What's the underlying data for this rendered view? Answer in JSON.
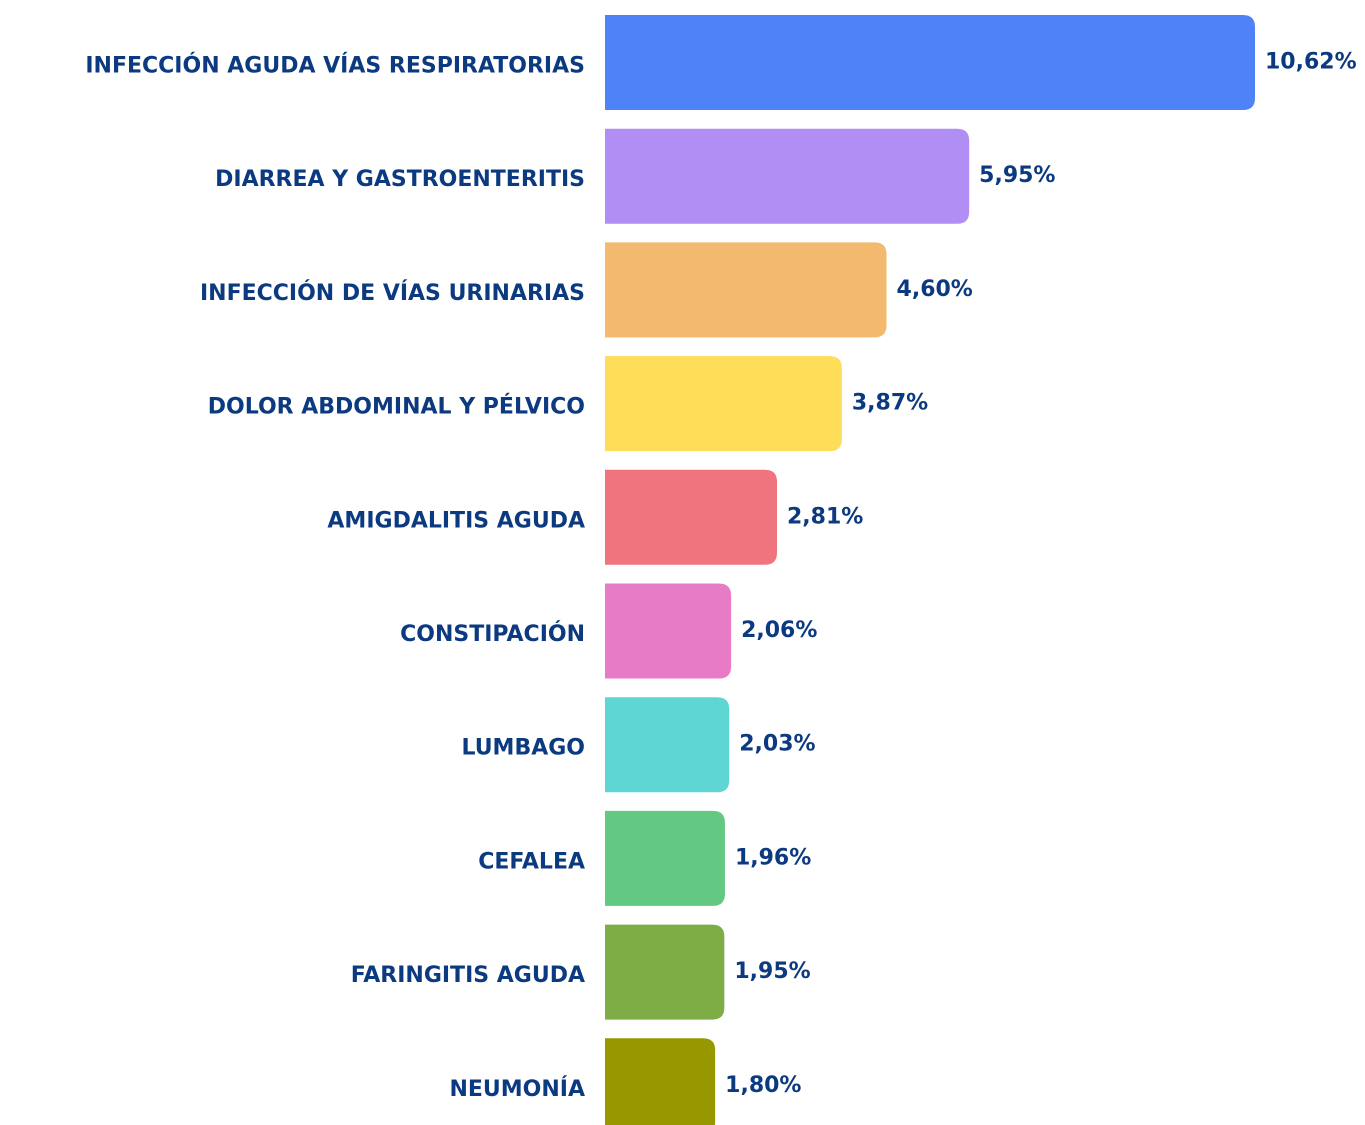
{
  "chart_data": {
    "type": "bar",
    "orientation": "horizontal",
    "categories": [
      "INFECCIÓN AGUDA VÍAS RESPIRATORIAS",
      "DIARREA Y GASTROENTERITIS",
      "INFECCIÓN DE VÍAS URINARIAS",
      "DOLOR ABDOMINAL Y PÉLVICO",
      "AMIGDALITIS AGUDA",
      "CONSTIPACIÓN",
      "LUMBAGO",
      "CEFALEA",
      "FARINGITIS AGUDA",
      "NEUMONÍA"
    ],
    "values": [
      10.62,
      5.95,
      4.6,
      3.87,
      2.81,
      2.06,
      2.03,
      1.96,
      1.95,
      1.8
    ],
    "value_labels": [
      "10,62%",
      "5,95%",
      "4,60%",
      "3,87%",
      "2,81%",
      "2,06%",
      "2,03%",
      "1,96%",
      "1,95%",
      "1,80%"
    ],
    "colors": [
      "#4f81f7",
      "#b08ef4",
      "#f3b96f",
      "#fedd58",
      "#ef747d",
      "#e87bc6",
      "#5dd6d4",
      "#63c982",
      "#7eac45",
      "#979700"
    ]
  }
}
